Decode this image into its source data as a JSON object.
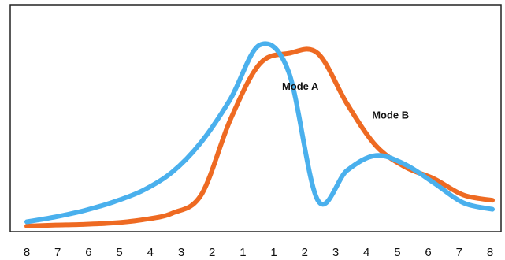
{
  "chart_data": {
    "type": "line",
    "title": "",
    "xlabel": "",
    "ylabel": "",
    "grid": false,
    "legend": "none",
    "x_ticks": [
      "8",
      "7",
      "6",
      "5",
      "4",
      "3",
      "2",
      "1",
      "1",
      "2",
      "3",
      "4",
      "5",
      "6",
      "7",
      "8"
    ],
    "series": [
      {
        "color": "#ee6a22",
        "values": [
          0,
          0.3,
          0.5,
          0.9,
          1.8,
          3.6,
          8.8,
          29.8,
          45.2,
          48.2,
          48.2,
          34.2,
          22.4,
          16.5,
          13.2,
          8.7,
          7.2
        ]
      },
      {
        "color": "#4ab0ed",
        "values": [
          1.2,
          2.6,
          4.4,
          6.8,
          10,
          15.1,
          23.5,
          35.5,
          50.5,
          43,
          7.2,
          15.5,
          19.7,
          17.2,
          12,
          6.5,
          4.7
        ]
      }
    ],
    "annotations": [
      {
        "text": "Mode A",
        "near_x": 9.4,
        "near_y": 38
      },
      {
        "text": "Mode B",
        "near_x": 12.5,
        "near_y": 30
      }
    ],
    "ylim": [
      0,
      60
    ]
  }
}
